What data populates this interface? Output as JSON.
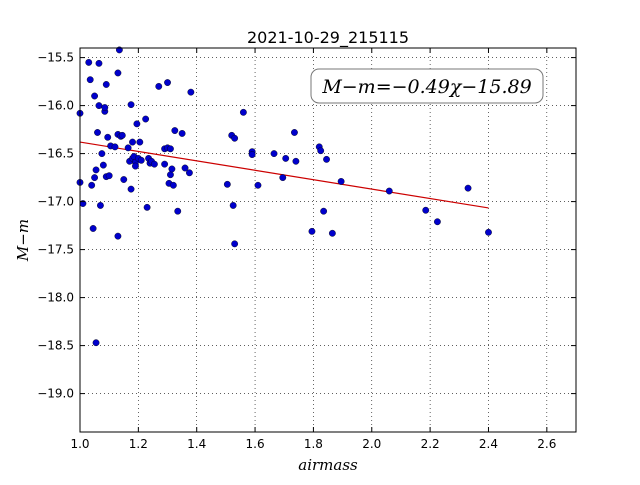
{
  "chart_data": {
    "type": "scatter",
    "title": "2021-10-29_215115",
    "xlabel": "airmass",
    "ylabel": "M−m",
    "xlim": [
      1.0,
      2.7
    ],
    "ylim": [
      -19.4,
      -15.4
    ],
    "y_inverted": true,
    "grid": true,
    "x_ticks": [
      1.0,
      1.2,
      1.4,
      1.6,
      1.8,
      2.0,
      2.2,
      2.4,
      2.6
    ],
    "x_tick_labels": [
      "1.0",
      "1.2",
      "1.4",
      "1.6",
      "1.8",
      "2.0",
      "2.2",
      "2.4",
      "2.6"
    ],
    "y_ticks": [
      -15.5,
      -16.0,
      -16.5,
      -17.0,
      -17.5,
      -18.0,
      -18.5,
      -19.0
    ],
    "y_tick_labels": [
      "−15.5",
      "−16.0",
      "−16.5",
      "−17.0",
      "−17.5",
      "−18.0",
      "−18.5",
      "−19.0"
    ],
    "annotation": "M−m=−0.49χ−15.89",
    "fit": {
      "slope": -0.49,
      "intercept": -15.89,
      "x_range": [
        1.0,
        2.4
      ],
      "color": "#cc0000"
    },
    "marker_color": "#0000cc",
    "points": [
      {
        "x": 1.0,
        "y": -16.08
      },
      {
        "x": 1.0,
        "y": -16.8
      },
      {
        "x": 1.01,
        "y": -17.02
      },
      {
        "x": 1.03,
        "y": -15.55
      },
      {
        "x": 1.035,
        "y": -15.73
      },
      {
        "x": 1.04,
        "y": -16.83
      },
      {
        "x": 1.045,
        "y": -17.28
      },
      {
        "x": 1.05,
        "y": -15.9
      },
      {
        "x": 1.05,
        "y": -16.75
      },
      {
        "x": 1.055,
        "y": -16.67
      },
      {
        "x": 1.055,
        "y": -18.47
      },
      {
        "x": 1.06,
        "y": -16.28
      },
      {
        "x": 1.065,
        "y": -15.56
      },
      {
        "x": 1.065,
        "y": -16.0
      },
      {
        "x": 1.07,
        "y": -17.04
      },
      {
        "x": 1.075,
        "y": -16.5
      },
      {
        "x": 1.08,
        "y": -16.62
      },
      {
        "x": 1.085,
        "y": -16.06
      },
      {
        "x": 1.085,
        "y": -16.02
      },
      {
        "x": 1.09,
        "y": -15.78
      },
      {
        "x": 1.09,
        "y": -16.74
      },
      {
        "x": 1.095,
        "y": -16.33
      },
      {
        "x": 1.1,
        "y": -16.73
      },
      {
        "x": 1.105,
        "y": -16.42
      },
      {
        "x": 1.12,
        "y": -16.43
      },
      {
        "x": 1.13,
        "y": -15.66
      },
      {
        "x": 1.13,
        "y": -16.3
      },
      {
        "x": 1.13,
        "y": -17.36
      },
      {
        "x": 1.135,
        "y": -15.42
      },
      {
        "x": 1.14,
        "y": -16.32
      },
      {
        "x": 1.145,
        "y": -16.31
      },
      {
        "x": 1.15,
        "y": -16.77
      },
      {
        "x": 1.165,
        "y": -16.44
      },
      {
        "x": 1.17,
        "y": -16.58
      },
      {
        "x": 1.175,
        "y": -15.99
      },
      {
        "x": 1.175,
        "y": -16.87
      },
      {
        "x": 1.18,
        "y": -16.55
      },
      {
        "x": 1.18,
        "y": -16.38
      },
      {
        "x": 1.185,
        "y": -16.53
      },
      {
        "x": 1.19,
        "y": -16.59
      },
      {
        "x": 1.19,
        "y": -16.63
      },
      {
        "x": 1.195,
        "y": -16.19
      },
      {
        "x": 1.2,
        "y": -16.55
      },
      {
        "x": 1.205,
        "y": -16.38
      },
      {
        "x": 1.21,
        "y": -16.57
      },
      {
        "x": 1.225,
        "y": -16.14
      },
      {
        "x": 1.23,
        "y": -17.06
      },
      {
        "x": 1.235,
        "y": -16.55
      },
      {
        "x": 1.24,
        "y": -16.6
      },
      {
        "x": 1.245,
        "y": -16.58
      },
      {
        "x": 1.255,
        "y": -16.61
      },
      {
        "x": 1.27,
        "y": -15.8
      },
      {
        "x": 1.29,
        "y": -16.45
      },
      {
        "x": 1.29,
        "y": -16.61
      },
      {
        "x": 1.3,
        "y": -15.76
      },
      {
        "x": 1.3,
        "y": -16.44
      },
      {
        "x": 1.305,
        "y": -16.81
      },
      {
        "x": 1.31,
        "y": -16.45
      },
      {
        "x": 1.31,
        "y": -16.72
      },
      {
        "x": 1.315,
        "y": -16.66
      },
      {
        "x": 1.32,
        "y": -16.83
      },
      {
        "x": 1.325,
        "y": -16.26
      },
      {
        "x": 1.335,
        "y": -17.1
      },
      {
        "x": 1.35,
        "y": -16.29
      },
      {
        "x": 1.36,
        "y": -16.65
      },
      {
        "x": 1.375,
        "y": -16.7
      },
      {
        "x": 1.38,
        "y": -15.86
      },
      {
        "x": 1.505,
        "y": -16.82
      },
      {
        "x": 1.52,
        "y": -16.31
      },
      {
        "x": 1.525,
        "y": -17.04
      },
      {
        "x": 1.53,
        "y": -16.34
      },
      {
        "x": 1.53,
        "y": -17.44
      },
      {
        "x": 1.56,
        "y": -16.07
      },
      {
        "x": 1.59,
        "y": -16.48
      },
      {
        "x": 1.59,
        "y": -16.51
      },
      {
        "x": 1.61,
        "y": -16.83
      },
      {
        "x": 1.665,
        "y": -16.5
      },
      {
        "x": 1.695,
        "y": -16.75
      },
      {
        "x": 1.705,
        "y": -16.55
      },
      {
        "x": 1.735,
        "y": -16.28
      },
      {
        "x": 1.74,
        "y": -16.58
      },
      {
        "x": 1.795,
        "y": -17.31
      },
      {
        "x": 1.82,
        "y": -16.43
      },
      {
        "x": 1.825,
        "y": -16.47
      },
      {
        "x": 1.835,
        "y": -17.1
      },
      {
        "x": 1.845,
        "y": -16.56
      },
      {
        "x": 1.865,
        "y": -17.33
      },
      {
        "x": 1.895,
        "y": -16.79
      },
      {
        "x": 2.06,
        "y": -16.89
      },
      {
        "x": 2.185,
        "y": -17.09
      },
      {
        "x": 2.225,
        "y": -17.21
      },
      {
        "x": 2.33,
        "y": -16.86
      },
      {
        "x": 2.4,
        "y": -17.32
      }
    ]
  }
}
